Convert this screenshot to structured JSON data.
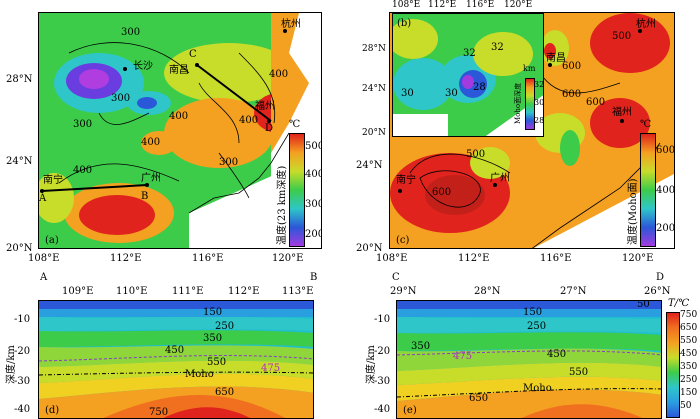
{
  "panels": {
    "a": {
      "label": "(a)",
      "x_ticks": [
        "108°E",
        "112°E",
        "116°E",
        "120°E"
      ],
      "y_ticks": [
        "28°N",
        "24°N",
        "20°N"
      ],
      "cities": [
        "南宁",
        "广州",
        "长沙",
        "南昌",
        "福州",
        "杭州"
      ],
      "points": [
        "A",
        "B",
        "C",
        "D"
      ],
      "contours": [
        "300",
        "400",
        "300",
        "400",
        "400",
        "300",
        "400",
        "400",
        "300"
      ],
      "colorbar": {
        "title": "℃",
        "label": "温度(23 km深度)",
        "ticks": [
          "500",
          "400",
          "300",
          "200"
        ]
      }
    },
    "b": {
      "label": "(b)",
      "x_ticks": [
        "108°E",
        "112°E",
        "116°E",
        "120°E"
      ],
      "y_ticks": [
        "28°N",
        "24°N",
        "20°N"
      ],
      "contours": [
        "32",
        "30",
        "28",
        "30",
        "32"
      ],
      "colorbar": {
        "title": "km",
        "label": "Moho面深度",
        "ticks": [
          "32",
          "30",
          "28"
        ]
      }
    },
    "c": {
      "label": "(c)",
      "x_ticks": [
        "108°E",
        "112°E",
        "116°E",
        "120°E"
      ],
      "y_ticks": [
        "24°N",
        "20°N"
      ],
      "cities": [
        "南宁",
        "广州",
        "南昌",
        "福州",
        "杭州"
      ],
      "contours": [
        "500",
        "600",
        "600",
        "600",
        "600",
        "500"
      ],
      "colorbar": {
        "title": "℃",
        "label": "温度(Moho面)",
        "ticks": [
          "600",
          "400",
          "200"
        ]
      }
    },
    "d": {
      "label": "(d)",
      "start": "A",
      "end": "B",
      "x_ticks": [
        "109°E",
        "110°E",
        "111°E",
        "112°E",
        "113°E"
      ],
      "y_ticks": [
        "-10",
        "-20",
        "-30",
        "-40"
      ],
      "ylabel": "深度/km",
      "contours": [
        "150",
        "250",
        "350",
        "450",
        "475",
        "550",
        "650",
        "750"
      ],
      "moho": "Moho"
    },
    "e": {
      "label": "(e)",
      "start": "C",
      "end": "D",
      "x_ticks": [
        "29°N",
        "28°N",
        "27°N",
        "26°N"
      ],
      "y_ticks": [
        "-10",
        "-20",
        "-30",
        "-40"
      ],
      "ylabel": "深度/km",
      "contours": [
        "50",
        "150",
        "250",
        "350",
        "475",
        "450",
        "550",
        "650"
      ],
      "moho": "Moho",
      "colorbar": {
        "title": "T/℃",
        "ticks": [
          "750",
          "650",
          "550",
          "450",
          "350",
          "250",
          "150",
          "50"
        ]
      }
    }
  },
  "colors": {
    "hot": "#e0231c",
    "warm": "#f4a021",
    "mid": "#c8dc2a",
    "green": "#3dcc4a",
    "cyan": "#2ec6c8",
    "blue": "#2b58d8",
    "violet": "#a13be0"
  }
}
